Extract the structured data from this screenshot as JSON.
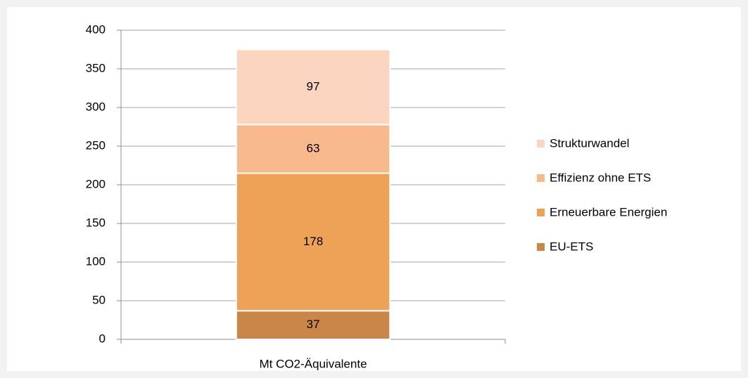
{
  "chart_data": {
    "type": "bar",
    "stacked": true,
    "categories": [
      "Mt CO2-Äquivalente"
    ],
    "series": [
      {
        "name": "EU-ETS",
        "color": "#ca8646",
        "values": [
          37
        ]
      },
      {
        "name": "Erneuerbare Energien",
        "color": "#eda258",
        "values": [
          178
        ]
      },
      {
        "name": "Effizienz ohne ETS",
        "color": "#f8b98c",
        "values": [
          63
        ]
      },
      {
        "name": "Strukturwandel",
        "color": "#fcd5c1",
        "values": [
          97
        ]
      }
    ],
    "ylim": [
      0,
      400
    ],
    "yticks": [
      0,
      50,
      100,
      150,
      200,
      250,
      300,
      350,
      400
    ],
    "grid": true,
    "legend": "right"
  }
}
